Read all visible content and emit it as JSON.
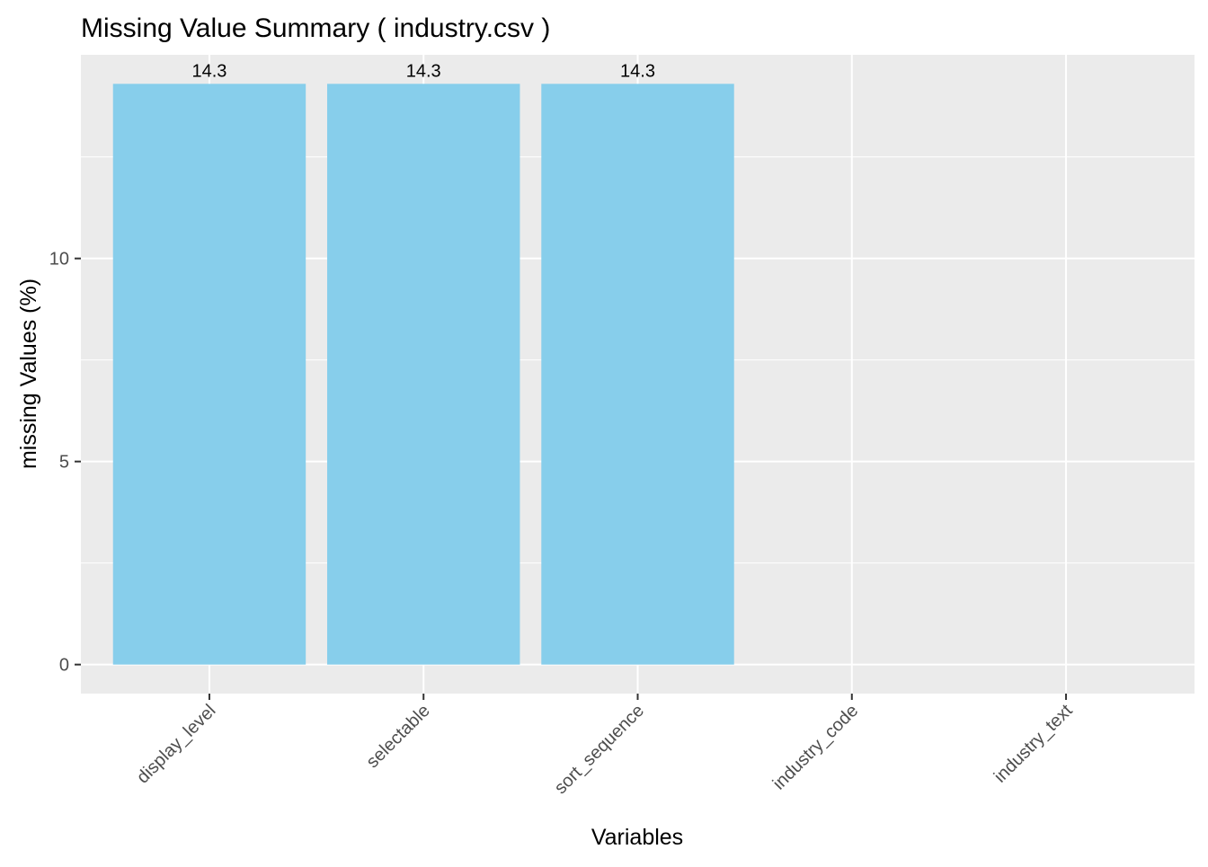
{
  "chart_data": {
    "type": "bar",
    "title": "Missing Value Summary ( industry.csv )",
    "xlabel": "Variables",
    "ylabel": "missing Values (%)",
    "categories": [
      "display_level",
      "selectable",
      "sort_sequence",
      "industry_code",
      "industry_text"
    ],
    "values": [
      14.3,
      14.3,
      14.3,
      0,
      0
    ],
    "data_labels": [
      "14.3",
      "14.3",
      "14.3",
      "",
      ""
    ],
    "y_ticks": [
      0,
      5,
      10
    ],
    "ylim": [
      -0.715,
      15.015
    ],
    "grid": true,
    "legend": "none",
    "x_tick_label_rotation": "45deg",
    "colors": {
      "bar": "#87ceeb",
      "panel": "#ebebeb",
      "grid": "#ffffff",
      "text": "#000000",
      "tick_text": "#4d4d4d",
      "tick_mark": "#333333"
    }
  }
}
